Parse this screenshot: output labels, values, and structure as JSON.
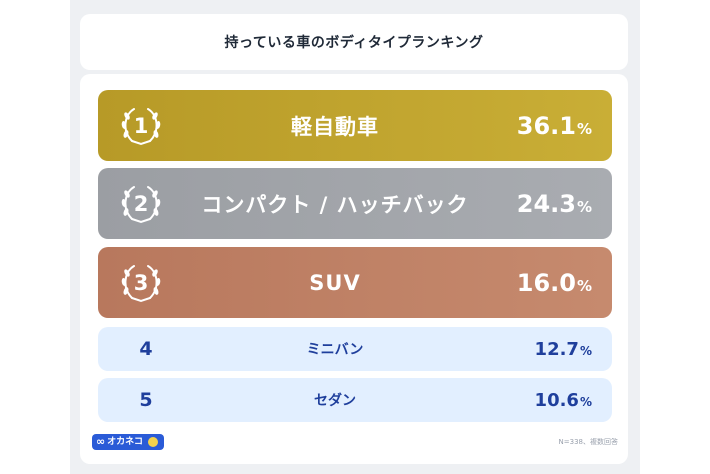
{
  "title": "持っている車のボディタイプランキング",
  "footnote": "N=338、複数回答",
  "logo": {
    "text": "オカネコ",
    "mark": "∞"
  },
  "colors": {
    "gold": "#c9ae36",
    "silver": "#a9acb1",
    "bronze": "#c68a6e",
    "light_row": "#e2efff",
    "navy_text": "#1f3f9c"
  },
  "chart_data": {
    "type": "table",
    "title": "持っている車のボディタイプランキング",
    "rows": [
      {
        "rank": "1",
        "label": "軽自動車",
        "value": 36.1,
        "value_text": "36.1",
        "unit": "%"
      },
      {
        "rank": "2",
        "label": "コンパクト / ハッチバック",
        "value": 24.3,
        "value_text": "24.3",
        "unit": "%"
      },
      {
        "rank": "3",
        "label": "SUV",
        "value": 16.0,
        "value_text": "16.0",
        "unit": "%"
      },
      {
        "rank": "4",
        "label": "ミニバン",
        "value": 12.7,
        "value_text": "12.7",
        "unit": "%"
      },
      {
        "rank": "5",
        "label": "セダン",
        "value": 10.6,
        "value_text": "10.6",
        "unit": "%"
      }
    ],
    "note": "N=338、複数回答"
  }
}
